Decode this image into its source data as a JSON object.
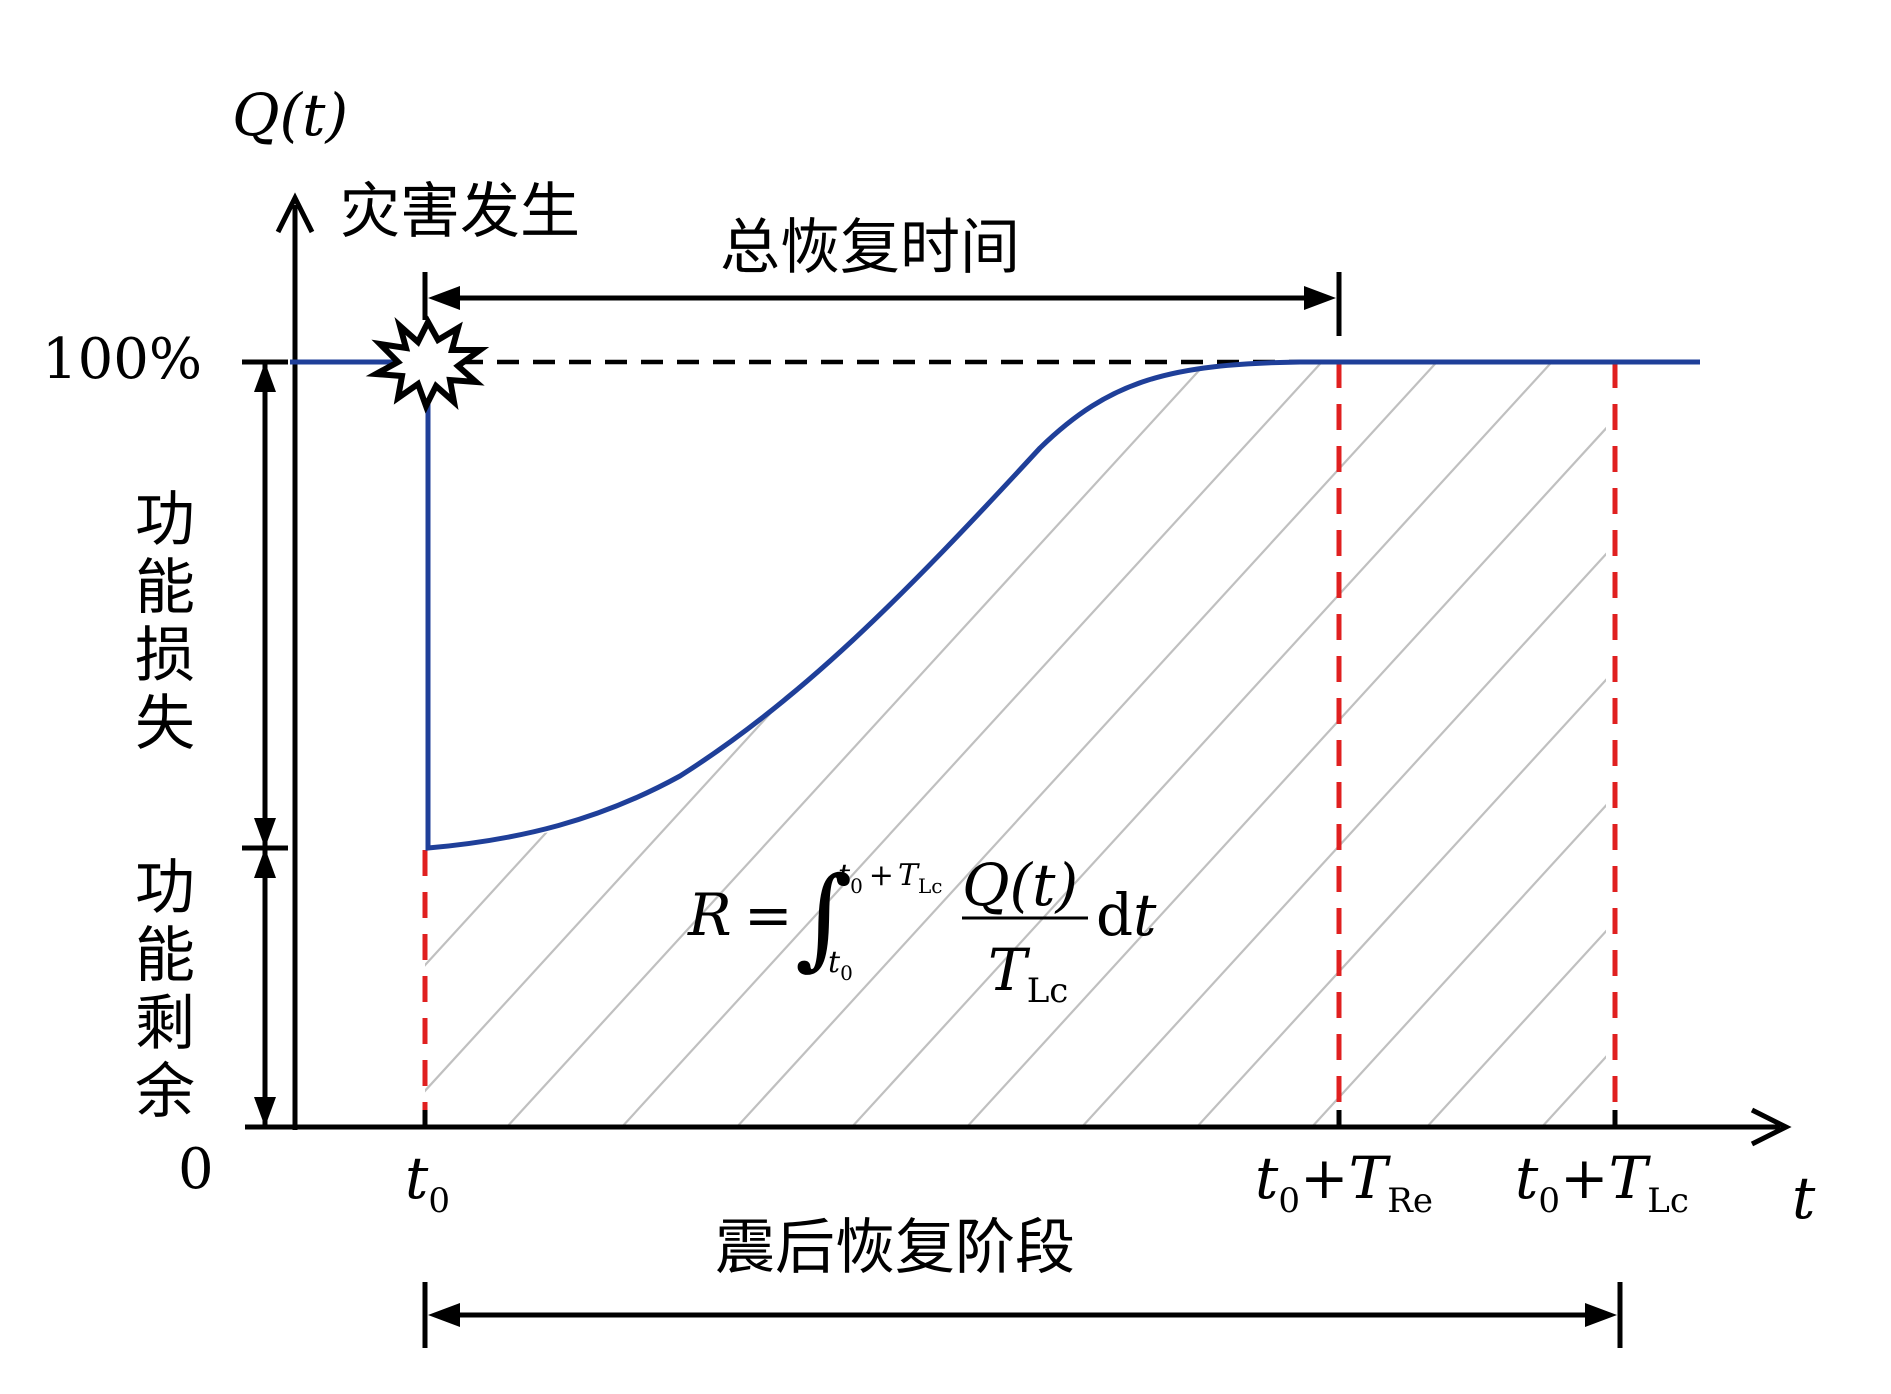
{
  "diagram": {
    "y_axis_label": "Q(t)",
    "x_axis_label": "t",
    "y_tick_full": "100%",
    "y_tick_zero": "0",
    "event_label": "灾害发生",
    "total_recovery_label": "总恢复时间",
    "loss_label": [
      "功",
      "能",
      "损",
      "失"
    ],
    "residual_label": [
      "功",
      "能",
      "剩",
      "余"
    ],
    "post_quake_label": "震后恢复阶段",
    "ticks": {
      "t0": {
        "base": "t",
        "sub": "0"
      },
      "t0_re": {
        "base": "t",
        "sub": "0",
        "plus": "+",
        "T": "T",
        "Tsub": "Re"
      },
      "t0_lc": {
        "base": "t",
        "sub": "0",
        "plus": "+",
        "T": "T",
        "Tsub": "Lc"
      }
    },
    "formula": {
      "lhs": "R",
      "eq": "=",
      "integral": "∫",
      "upper_t": "t",
      "upper_t_sub": "0",
      "upper_plus": "+",
      "upper_T": "T",
      "upper_T_sub": "Lc",
      "lower_t": "t",
      "lower_t_sub": "0",
      "numerator": "Q(t)",
      "denominator_T": "T",
      "denominator_sub": "Lc",
      "dt_d": "d",
      "dt_t": "t"
    },
    "colors": {
      "curve": "#1f3f99",
      "marker": "#e02020",
      "hatch": "#c0c0c0",
      "axis": "#000000"
    }
  }
}
